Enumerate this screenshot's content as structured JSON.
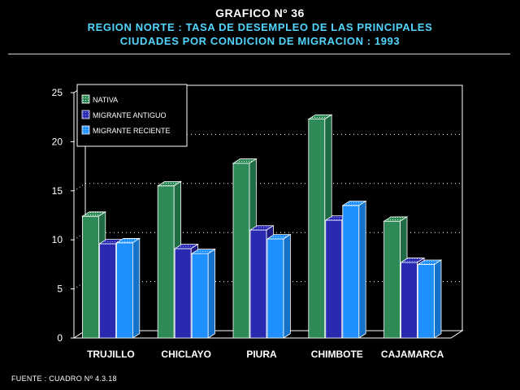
{
  "header": {
    "graph_number": "GRAFICO Nº 36",
    "title_line1": "REGION NORTE : TASA DE DESEMPLEO DE LAS PRINCIPALES",
    "title_line2": "CIUDADES POR CONDICION DE MIGRACION : 1993"
  },
  "footer": {
    "source": "FUENTE : CUADRO Nº 4.3.18"
  },
  "colors": {
    "background": "#000000",
    "title": "#ffffff",
    "subtitle": "#52d6ff",
    "nativa": "#2e8b57",
    "migrante_antiguo": "#2a2ab0",
    "migrante_reciente": "#1e90ff"
  },
  "chart_data": {
    "type": "bar",
    "style": "3d-clustered",
    "categories": [
      "TRUJILLO",
      "CHICLAYO",
      "PIURA",
      "CHIMBOTE",
      "CAJAMARCA"
    ],
    "series": [
      {
        "name": "NATIVA",
        "values": [
          12.4,
          15.5,
          17.8,
          22.3,
          11.9
        ]
      },
      {
        "name": "MIGRANTE ANTIGUO",
        "values": [
          9.6,
          9.1,
          11.0,
          12.0,
          7.7
        ]
      },
      {
        "name": "MIGRANTE RECIENTE",
        "values": [
          9.7,
          8.6,
          10.1,
          13.5,
          7.5
        ]
      }
    ],
    "y_ticks": [
      0,
      5,
      10,
      15,
      20,
      25
    ],
    "ylim": [
      0,
      25
    ],
    "xlabel": "",
    "ylabel": "",
    "grid": "horizontal-dotted",
    "legend_position": "top-left"
  }
}
